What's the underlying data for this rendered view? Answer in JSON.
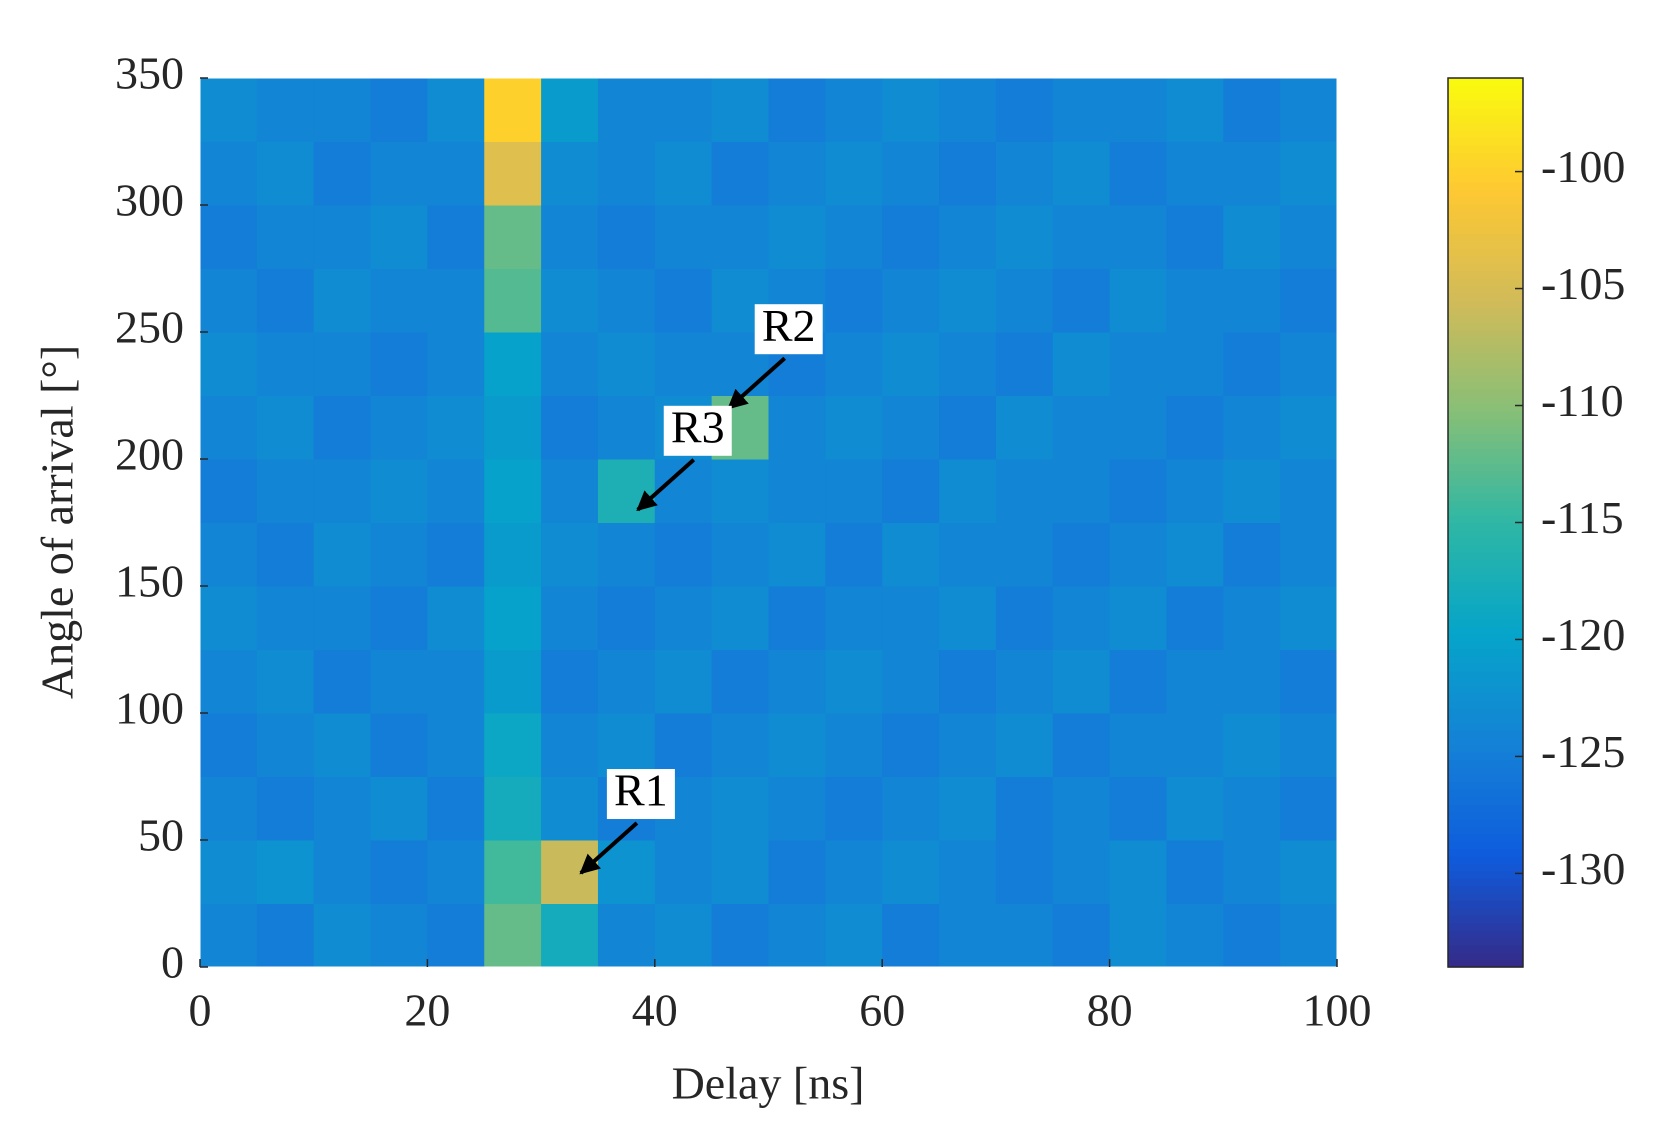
{
  "chart_data": {
    "type": "heatmap",
    "x_label": "Delay [ns]",
    "y_label": "Angle of arrival [°]",
    "xbins": [
      0,
      5,
      10,
      15,
      20,
      25,
      30,
      35,
      40,
      45,
      50,
      55,
      60,
      65,
      70,
      75,
      80,
      85,
      90,
      95,
      100
    ],
    "ybins": [
      0,
      25,
      50,
      75,
      100,
      125,
      150,
      175,
      200,
      225,
      250,
      275,
      300,
      325,
      350
    ],
    "values": [
      [
        -124,
        -125,
        -123,
        -124,
        -125,
        -112,
        -118,
        -124,
        -123,
        -125,
        -124,
        -123,
        -125,
        -124,
        -124,
        -125,
        -123,
        -124,
        -125,
        -124
      ],
      [
        -123,
        -122,
        -124,
        -125,
        -124,
        -114,
        -106,
        -122,
        -124,
        -123,
        -125,
        -124,
        -123,
        -124,
        -125,
        -124,
        -123,
        -125,
        -124,
        -123
      ],
      [
        -124,
        -125,
        -124,
        -123,
        -125,
        -118,
        -123,
        -125,
        -124,
        -123,
        -124,
        -125,
        -124,
        -123,
        -125,
        -124,
        -125,
        -123,
        -124,
        -125
      ],
      [
        -125,
        -124,
        -123,
        -125,
        -124,
        -119,
        -124,
        -123,
        -125,
        -124,
        -123,
        -124,
        -125,
        -124,
        -123,
        -125,
        -124,
        -124,
        -123,
        -124
      ],
      [
        -124,
        -123,
        -125,
        -124,
        -124,
        -121,
        -125,
        -124,
        -123,
        -125,
        -124,
        -123,
        -124,
        -125,
        -124,
        -123,
        -125,
        -124,
        -124,
        -125
      ],
      [
        -123,
        -124,
        -124,
        -125,
        -123,
        -120,
        -124,
        -125,
        -124,
        -123,
        -125,
        -124,
        -124,
        -123,
        -125,
        -124,
        -123,
        -125,
        -124,
        -123
      ],
      [
        -124,
        -125,
        -123,
        -124,
        -125,
        -121,
        -123,
        -124,
        -125,
        -124,
        -123,
        -125,
        -123,
        -124,
        -124,
        -125,
        -124,
        -123,
        -125,
        -124
      ],
      [
        -125,
        -124,
        -124,
        -123,
        -124,
        -120,
        -124,
        -117,
        -124,
        -123,
        -124,
        -124,
        -125,
        -123,
        -124,
        -124,
        -125,
        -124,
        -123,
        -124
      ],
      [
        -124,
        -123,
        -125,
        -124,
        -123,
        -121,
        -125,
        -124,
        -123,
        -112,
        -124,
        -123,
        -124,
        -125,
        -123,
        -124,
        -124,
        -125,
        -124,
        -123
      ],
      [
        -123,
        -124,
        -124,
        -125,
        -124,
        -120,
        -124,
        -123,
        -124,
        -124,
        -125,
        -124,
        -123,
        -124,
        -125,
        -123,
        -124,
        -124,
        -125,
        -124
      ],
      [
        -124,
        -125,
        -123,
        -124,
        -124,
        -113,
        -123,
        -124,
        -125,
        -123,
        -124,
        -125,
        -124,
        -123,
        -124,
        -125,
        -123,
        -124,
        -124,
        -125
      ],
      [
        -125,
        -124,
        -124,
        -123,
        -125,
        -112,
        -124,
        -125,
        -124,
        -124,
        -123,
        -124,
        -125,
        -124,
        -123,
        -124,
        -124,
        -125,
        -123,
        -124
      ],
      [
        -124,
        -123,
        -125,
        -124,
        -124,
        -104,
        -123,
        -124,
        -123,
        -125,
        -124,
        -123,
        -124,
        -125,
        -124,
        -123,
        -125,
        -124,
        -124,
        -123
      ],
      [
        -123,
        -124,
        -124,
        -125,
        -123,
        -100,
        -121,
        -124,
        -124,
        -123,
        -125,
        -124,
        -123,
        -124,
        -125,
        -124,
        -124,
        -123,
        -125,
        -124
      ]
    ],
    "xlim": [
      0,
      100
    ],
    "xticks": [
      0,
      20,
      40,
      60,
      80,
      100
    ],
    "ylim": [
      0,
      350
    ],
    "yticks": [
      0,
      50,
      100,
      150,
      200,
      250,
      300,
      350
    ],
    "clim": [
      -134,
      -96
    ],
    "cticks": [
      -130,
      -125,
      -120,
      -115,
      -110,
      -105,
      -100
    ],
    "colormap": [
      "#352a87",
      "#0f5cdd",
      "#1481d6",
      "#06a4ca",
      "#2eb7a4",
      "#87bf77",
      "#d1bb59",
      "#fec832",
      "#f9fb0e"
    ],
    "annotations": [
      {
        "text": "R1",
        "x": 33.5,
        "y": 37
      },
      {
        "text": "R2",
        "x": 46.5,
        "y": 220
      },
      {
        "text": "R3",
        "x": 38.5,
        "y": 180
      }
    ]
  }
}
